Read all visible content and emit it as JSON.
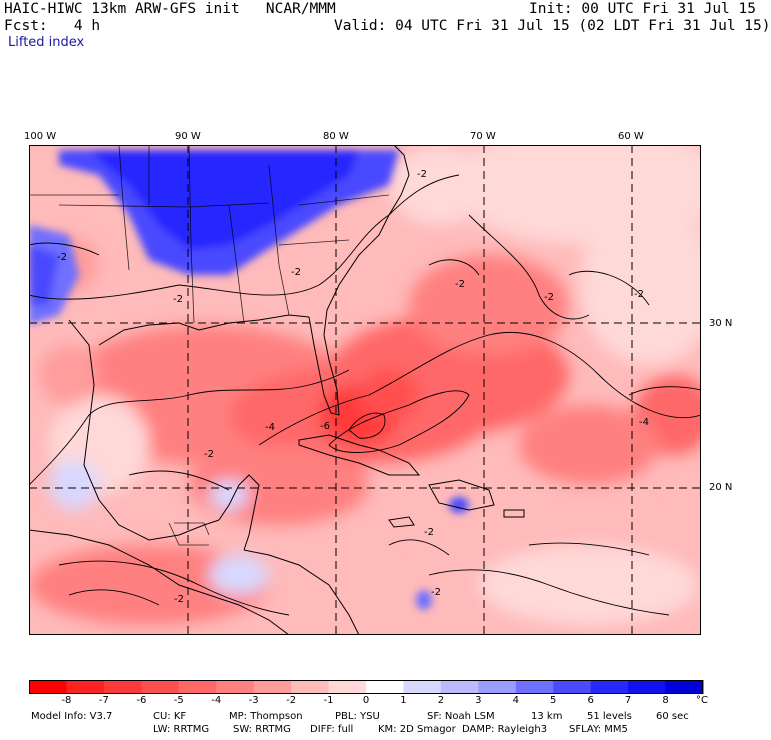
{
  "header": {
    "model": "HAIC-HIWC 13km ARW-GFS init",
    "org": "NCAR/MMM",
    "init": "Init: 00 UTC Fri 31 Jul 15",
    "fcst_label": "Fcst:",
    "fcst_value": "4 h",
    "valid": "Valid: 04 UTC Fri 31 Jul 15 (02 LDT Fri 31 Jul 15)",
    "field": "Lifted index"
  },
  "map": {
    "lon_labels": [
      "100 W",
      "90 W",
      "80 W",
      "70 W",
      "60 W"
    ],
    "lat_labels": [
      "30 N",
      "20 N"
    ],
    "contour_label": "-2",
    "contour_label_4": "-4",
    "contour_label_6": "-6"
  },
  "colorbar": {
    "ticks": [
      "-8",
      "-7",
      "-6",
      "-5",
      "-4",
      "-3",
      "-2",
      "-1",
      "0",
      "1",
      "2",
      "3",
      "4",
      "5",
      "6",
      "7",
      "8"
    ],
    "unit": "°C",
    "colors": [
      "#ff0000",
      "#ff2020",
      "#ff3a3a",
      "#ff5050",
      "#ff6868",
      "#ff8080",
      "#ff9c9c",
      "#ffbaba",
      "#ffd8d8",
      "#ffffff",
      "#d8d8ff",
      "#babaff",
      "#9c9cff",
      "#7070ff",
      "#4a4aff",
      "#2828ff",
      "#1010f0",
      "#0000d8"
    ]
  },
  "footer": {
    "line1": [
      "Model Info: V3.7",
      "CU: KF",
      "MP: Thompson",
      "PBL: YSU",
      "SF: Noah LSM",
      "13 km",
      "51 levels",
      "60 sec"
    ],
    "line2": [
      "LW: RRTMG",
      "SW: RRTMG",
      "DIFF: full",
      "KM: 2D Smagor",
      "DAMP: Rayleigh3",
      "SFLAY: MM5"
    ]
  }
}
